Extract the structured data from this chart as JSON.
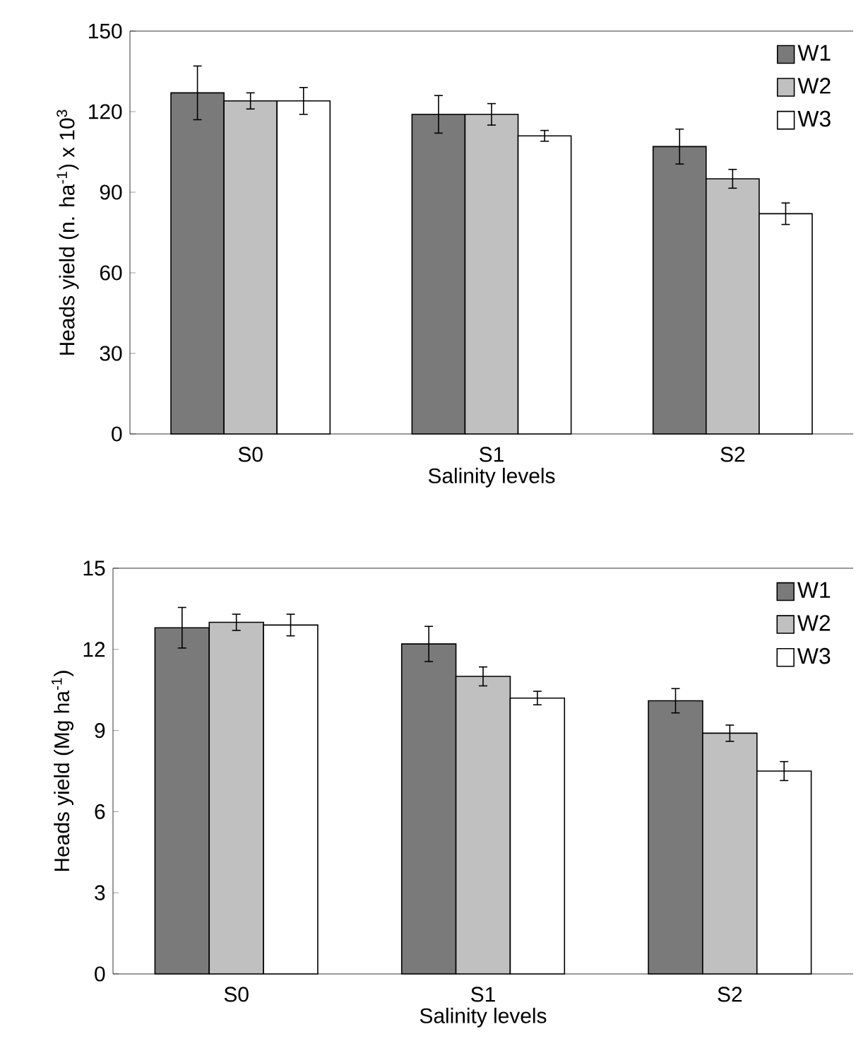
{
  "chart_data": [
    {
      "type": "bar",
      "xlabel": "Salinity levels",
      "ylabel": "Heads yield (n. ha$^{-1}$)  x 10$^{3}$",
      "categories": [
        "S0",
        "S1",
        "S2"
      ],
      "ylim": [
        0,
        150
      ],
      "yticks": [
        0,
        30,
        60,
        90,
        120,
        150
      ],
      "legend": "top right",
      "grid": false,
      "series": [
        {
          "name": "W1",
          "color": "#7a7a7a",
          "values": [
            127,
            119,
            107
          ],
          "errors": [
            10,
            7,
            6.5
          ]
        },
        {
          "name": "W2",
          "color": "#c0c0c0",
          "values": [
            124,
            119,
            95
          ],
          "errors": [
            3,
            4,
            3.5
          ]
        },
        {
          "name": "W3",
          "color": "#ffffff",
          "values": [
            124,
            111,
            82
          ],
          "errors": [
            5,
            2,
            4
          ]
        }
      ]
    },
    {
      "type": "bar",
      "xlabel": "Salinity levels",
      "ylabel": "Heads yield (Mg ha$^{-1}$)",
      "categories": [
        "S0",
        "S1",
        "S2"
      ],
      "ylim": [
        0,
        15
      ],
      "yticks": [
        0,
        3,
        6,
        9,
        12,
        15
      ],
      "legend": "top right",
      "grid": false,
      "series": [
        {
          "name": "W1",
          "color": "#7a7a7a",
          "values": [
            12.8,
            12.2,
            10.1
          ],
          "errors": [
            0.75,
            0.65,
            0.45
          ]
        },
        {
          "name": "W2",
          "color": "#c0c0c0",
          "values": [
            13.0,
            11.0,
            8.9
          ],
          "errors": [
            0.3,
            0.35,
            0.3
          ]
        },
        {
          "name": "W3",
          "color": "#ffffff",
          "values": [
            12.9,
            10.2,
            7.5
          ],
          "errors": [
            0.4,
            0.25,
            0.35
          ]
        }
      ]
    }
  ]
}
